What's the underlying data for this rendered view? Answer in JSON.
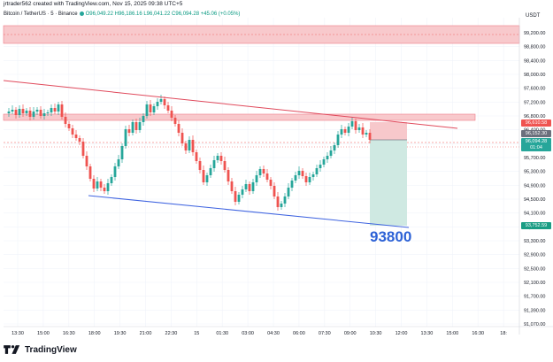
{
  "header": {
    "author_line": "jrtrader562 created with TradingView.com, Nov 15, 2025 09:38 UTC+5",
    "symbol": "Bitcoin / TetherUS · 5 · Binance",
    "ohlc": "O96,049.22  H96,186.16  L96,041.22  C96,094.28  +45.06 (+0.05%)"
  },
  "price_axis": {
    "currency": "USDT",
    "ticks": [
      "99,200.00",
      "98,800.00",
      "98,400.00",
      "98,000.00",
      "97,600.00",
      "97,200.00",
      "96,800.00",
      "96,400.00",
      "96,000.00",
      "95,700.00",
      "95,300.00",
      "94,900.00",
      "94,500.00",
      "94,100.00",
      "93,700.00",
      "93,300.00",
      "92,900.00",
      "92,500.00",
      "92,100.00",
      "91,700.00",
      "91,390.00",
      "91,070.00"
    ]
  },
  "time_axis": {
    "ticks": [
      "13:30",
      "15:00",
      "16:30",
      "18:00",
      "19:30",
      "21:00",
      "22:30",
      "15",
      "01:30",
      "03:00",
      "04:30",
      "06:00",
      "07:30",
      "09:00",
      "10:30",
      "12:00",
      "13:30",
      "15:00",
      "16:30",
      "18:"
    ]
  },
  "price_labels": {
    "stop": "96,610.58",
    "entry": "96,152.30",
    "last_price": "96,094.28",
    "countdown": "01:04",
    "target": "93,752.59"
  },
  "annotation": {
    "target_text": "93800"
  },
  "colors": {
    "up": "#26a69a",
    "down": "#ef5350",
    "zone_fill": "#f8c9cc",
    "stop_fill": "#f7c8cb",
    "target_fill": "#cfe9e2",
    "lower_trend": "#3e63e0",
    "upper_trend": "#e04a5c",
    "target_label": "#1a9d84",
    "annotation": "#2d62d6"
  },
  "footer": {
    "brand": "TradingView",
    "logo_icon": "tradingview-logo-icon"
  }
}
